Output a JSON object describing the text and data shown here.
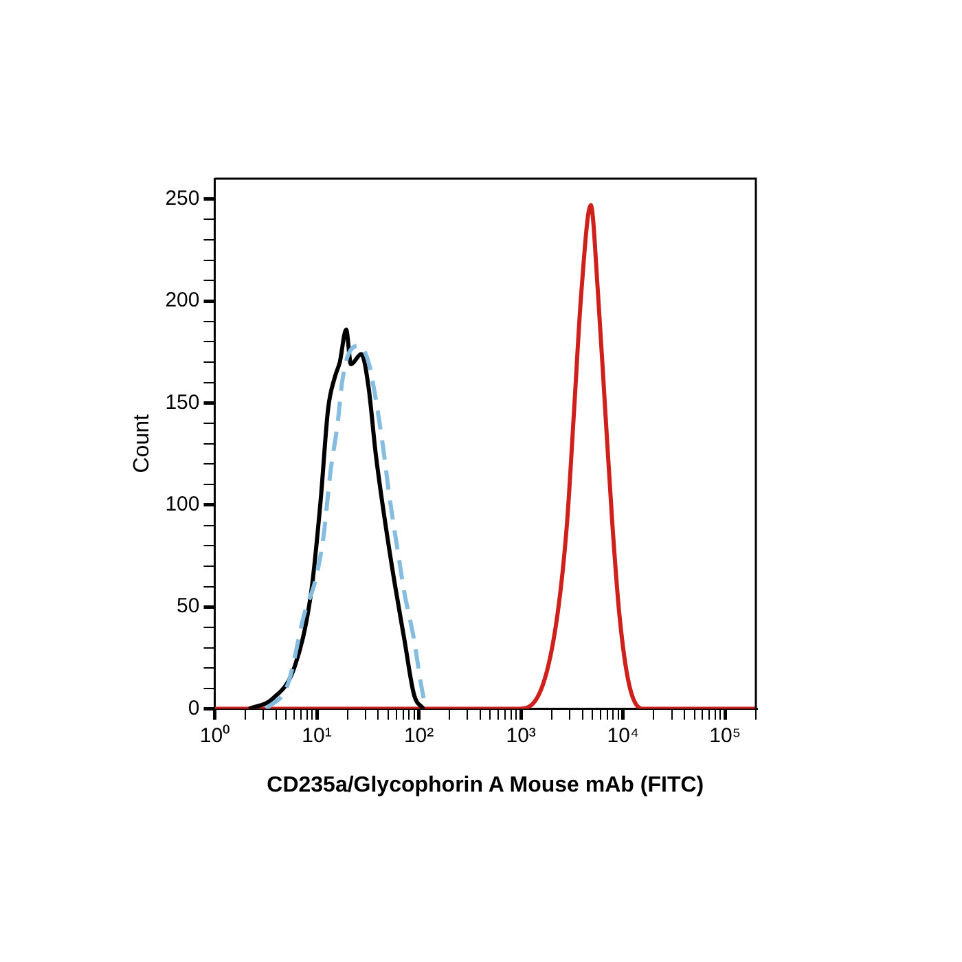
{
  "chart_data": {
    "type": "line",
    "xlabel": "CD235a/Glycophorin A Mouse mAb (FITC)",
    "ylabel": "Count",
    "log": "x",
    "grid": false,
    "legend": false,
    "marker": "none",
    "xlim": [
      1,
      200000
    ],
    "ylim": [
      0,
      260
    ],
    "xticks": [
      {
        "value": 1,
        "label": "10⁰"
      },
      {
        "value": 2,
        "label": null
      },
      {
        "value": 3,
        "label": null
      },
      {
        "value": 4,
        "label": null
      },
      {
        "value": 5,
        "label": null
      },
      {
        "value": 6,
        "label": null
      },
      {
        "value": 7,
        "label": null
      },
      {
        "value": 8,
        "label": null
      },
      {
        "value": 9,
        "label": null
      },
      {
        "value": 10,
        "label": "10¹"
      },
      {
        "value": 20,
        "label": null
      },
      {
        "value": 30,
        "label": null
      },
      {
        "value": 40,
        "label": null
      },
      {
        "value": 50,
        "label": null
      },
      {
        "value": 60,
        "label": null
      },
      {
        "value": 70,
        "label": null
      },
      {
        "value": 80,
        "label": null
      },
      {
        "value": 90,
        "label": null
      },
      {
        "value": 100,
        "label": "10²"
      },
      {
        "value": 200,
        "label": null
      },
      {
        "value": 300,
        "label": null
      },
      {
        "value": 400,
        "label": null
      },
      {
        "value": 500,
        "label": null
      },
      {
        "value": 600,
        "label": null
      },
      {
        "value": 700,
        "label": null
      },
      {
        "value": 800,
        "label": null
      },
      {
        "value": 900,
        "label": null
      },
      {
        "value": 1000,
        "label": "10³"
      },
      {
        "value": 2000,
        "label": null
      },
      {
        "value": 3000,
        "label": null
      },
      {
        "value": 4000,
        "label": null
      },
      {
        "value": 5000,
        "label": null
      },
      {
        "value": 6000,
        "label": null
      },
      {
        "value": 7000,
        "label": null
      },
      {
        "value": 8000,
        "label": null
      },
      {
        "value": 9000,
        "label": null
      },
      {
        "value": 10000,
        "label": "10⁴"
      },
      {
        "value": 20000,
        "label": null
      },
      {
        "value": 30000,
        "label": null
      },
      {
        "value": 40000,
        "label": null
      },
      {
        "value": 50000,
        "label": null
      },
      {
        "value": 60000,
        "label": null
      },
      {
        "value": 70000,
        "label": null
      },
      {
        "value": 80000,
        "label": null
      },
      {
        "value": 90000,
        "label": null
      },
      {
        "value": 100000,
        "label": "10⁵"
      },
      {
        "value": 200000,
        "label": null
      }
    ],
    "yticks": [
      0,
      {
        "value": 10,
        "label": null
      },
      {
        "value": 20,
        "label": null
      },
      {
        "value": 30,
        "label": null
      },
      {
        "value": 40,
        "label": null
      },
      50,
      {
        "value": 60,
        "label": null
      },
      {
        "value": 70,
        "label": null
      },
      {
        "value": 80,
        "label": null
      },
      {
        "value": 90,
        "label": null
      },
      100,
      {
        "value": 110,
        "label": null
      },
      {
        "value": 120,
        "label": null
      },
      {
        "value": 130,
        "label": null
      },
      {
        "value": 140,
        "label": null
      },
      150,
      {
        "value": 160,
        "label": null
      },
      {
        "value": 170,
        "label": null
      },
      {
        "value": 180,
        "label": null
      },
      {
        "value": 190,
        "label": null
      },
      200,
      {
        "value": 210,
        "label": null
      },
      {
        "value": 220,
        "label": null
      },
      {
        "value": 230,
        "label": null
      },
      {
        "value": 240,
        "label": null
      },
      250
    ],
    "series": [
      {
        "color": "#85bde0",
        "line_style": "dashed",
        "x": [
          3.2,
          5.2,
          7.5,
          9.8,
          11.6,
          13.6,
          16.0,
          17.8,
          20.9,
          25.9,
          32.1,
          37.8,
          44.4,
          52.2,
          61.4,
          72.1,
          89.6,
          105,
          117
        ],
        "values": [
          0,
          12,
          46,
          64,
          84,
          116,
          140,
          161,
          175,
          178,
          170,
          152,
          129,
          102,
          79,
          57,
          34,
          12,
          0
        ]
      },
      {
        "color": "#000000",
        "line_style": "solid",
        "x": [
          2.17,
          3.7,
          6.1,
          8.8,
          10.9,
          12.9,
          15.1,
          16.8,
          19.4,
          21.6,
          27.3,
          32.1,
          37.8,
          46.9,
          58.2,
          72.1,
          89.6,
          111
        ],
        "values": [
          0,
          5,
          21,
          57,
          102,
          147,
          163,
          170,
          186,
          169,
          174,
          158,
          125,
          91,
          61,
          34,
          7,
          0
        ]
      },
      {
        "color": "#d0201c",
        "line_style": "solid",
        "x": [
          1,
          959,
          1644,
          2275,
          2825,
          3320,
          3900,
          4830,
          5680,
          6680,
          7850,
          9220,
          11460,
          15800,
          200000
        ],
        "values": [
          0,
          0,
          12,
          46,
          91,
          147,
          204,
          247,
          204,
          147,
          91,
          46,
          12,
          0,
          0
        ]
      }
    ]
  }
}
